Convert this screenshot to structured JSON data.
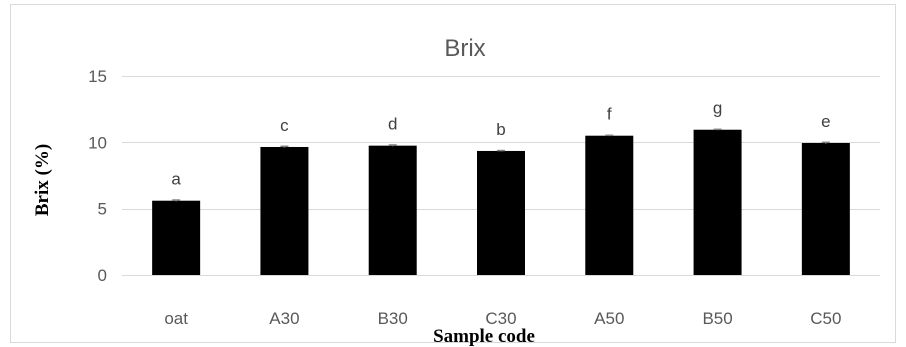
{
  "chart_data": {
    "type": "bar",
    "title": "Brix",
    "xlabel": "Sample code",
    "ylabel": "Brix (%)",
    "ylim": [
      0,
      15
    ],
    "yticks": [
      0,
      5,
      10,
      15
    ],
    "grid": true,
    "legend": "none",
    "bar_color": "#000000",
    "categories": [
      "oat",
      "A30",
      "B30",
      "C30",
      "A50",
      "B50",
      "C50"
    ],
    "values": [
      5.6,
      9.65,
      9.75,
      9.35,
      10.5,
      10.95,
      9.95
    ],
    "errors": [
      0.05,
      0.05,
      0.05,
      0.03,
      0.03,
      0.03,
      0.05
    ],
    "labels": [
      "a",
      "c",
      "d",
      "b",
      "f",
      "g",
      "e"
    ]
  }
}
